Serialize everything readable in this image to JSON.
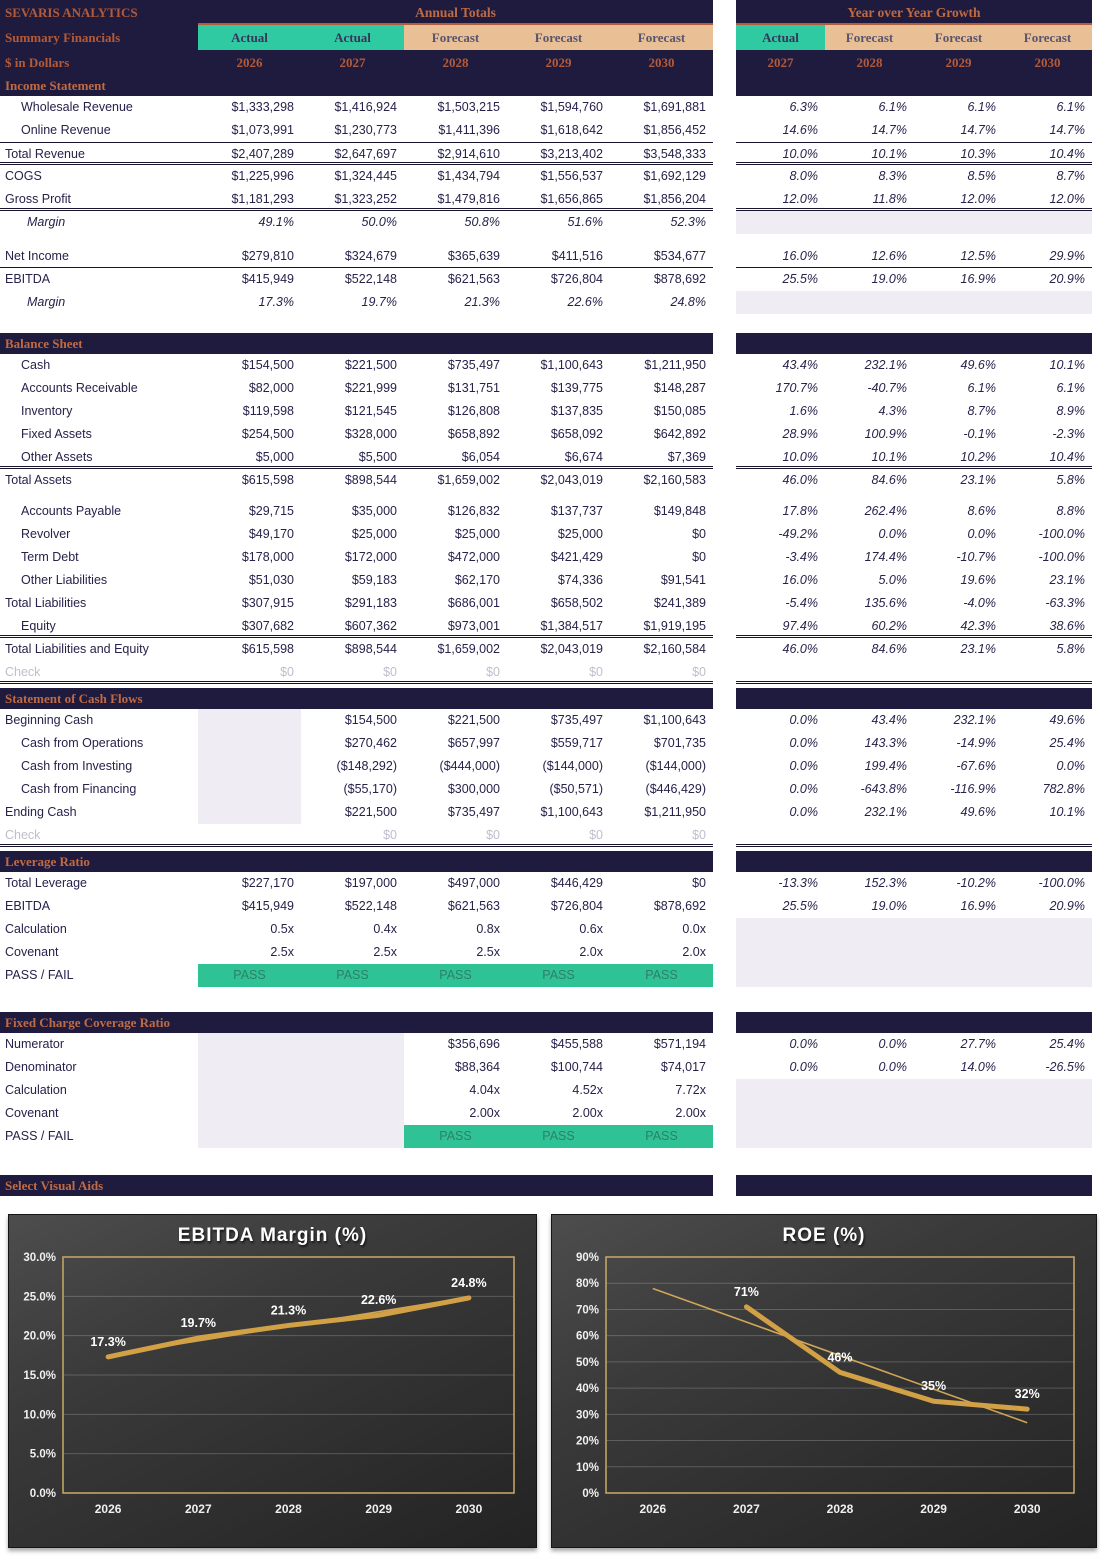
{
  "header": {
    "company": "SEVARIS ANALYTICS",
    "subtitle": "Summary Financials",
    "units": "$ in Dollars",
    "left_group": "Annual Totals",
    "right_group": "Year over Year Growth",
    "left_cols": [
      {
        "type": "Actual",
        "year": "2026"
      },
      {
        "type": "Actual",
        "year": "2027"
      },
      {
        "type": "Forecast",
        "year": "2028"
      },
      {
        "type": "Forecast",
        "year": "2029"
      },
      {
        "type": "Forecast",
        "year": "2030"
      }
    ],
    "right_cols": [
      {
        "type": "Actual",
        "year": "2027"
      },
      {
        "type": "Forecast",
        "year": "2028"
      },
      {
        "type": "Forecast",
        "year": "2029"
      },
      {
        "type": "Forecast",
        "year": "2030"
      }
    ]
  },
  "colors": {
    "navy": "#1f1b3e",
    "accent": "#c06a42",
    "teal_actual": "#2fc9a2",
    "tan_forecast": "#e9c096",
    "pass_fill": "#2fc294",
    "gray_fill": "#efedf3",
    "chart_line_gold": "#d2a045"
  },
  "sections": [
    {
      "title": "Income Statement",
      "gap": 0,
      "rows": [
        {
          "l": "Wholesale Revenue",
          "i": 1,
          "v": [
            "$1,333,298",
            "$1,416,924",
            "$1,503,215",
            "$1,594,760",
            "$1,691,881"
          ],
          "y": [
            "6.3%",
            "6.1%",
            "6.1%",
            "6.1%"
          ]
        },
        {
          "l": "Online Revenue",
          "i": 1,
          "v": [
            "$1,073,991",
            "$1,230,773",
            "$1,411,396",
            "$1,618,642",
            "$1,856,452"
          ],
          "y": [
            "14.6%",
            "14.7%",
            "14.7%",
            "14.7%"
          ]
        },
        {
          "l": "Total Revenue",
          "bt": "s",
          "bb": "d",
          "v": [
            "$2,407,289",
            "$2,647,697",
            "$2,914,610",
            "$3,213,402",
            "$3,548,333"
          ],
          "y": [
            "10.0%",
            "10.1%",
            "10.3%",
            "10.4%"
          ]
        },
        {
          "l": "COGS",
          "v": [
            "$1,225,996",
            "$1,324,445",
            "$1,434,794",
            "$1,556,537",
            "$1,692,129"
          ],
          "y": [
            "8.0%",
            "8.3%",
            "8.5%",
            "8.7%"
          ]
        },
        {
          "l": "Gross Profit",
          "bb": "d",
          "v": [
            "$1,181,293",
            "$1,323,252",
            "$1,479,816",
            "$1,656,865",
            "$1,856,204"
          ],
          "y": [
            "12.0%",
            "11.8%",
            "12.0%",
            "12.0%"
          ]
        },
        {
          "l": "Margin",
          "i": 2,
          "it": true,
          "v": [
            "49.1%",
            "50.0%",
            "50.8%",
            "51.6%",
            "52.3%"
          ],
          "y": [
            "",
            "",
            "",
            ""
          ],
          "gr": true
        },
        {
          "sp": 11
        },
        {
          "l": "Net Income",
          "bb": "s",
          "v": [
            "$279,810",
            "$324,679",
            "$365,639",
            "$411,516",
            "$534,677"
          ],
          "y": [
            "16.0%",
            "12.6%",
            "12.5%",
            "29.9%"
          ]
        },
        {
          "l": "EBITDA",
          "v": [
            "$415,949",
            "$522,148",
            "$621,563",
            "$726,804",
            "$878,692"
          ],
          "y": [
            "25.5%",
            "19.0%",
            "16.9%",
            "20.9%"
          ]
        },
        {
          "l": "Margin",
          "i": 2,
          "it": true,
          "v": [
            "17.3%",
            "19.7%",
            "21.3%",
            "22.6%",
            "24.8%"
          ],
          "y": [
            "",
            "",
            "",
            ""
          ],
          "gr": true
        }
      ]
    },
    {
      "title": "Balance Sheet",
      "gap": 19,
      "rows": [
        {
          "l": "Cash",
          "i": 1,
          "v": [
            "$154,500",
            "$221,500",
            "$735,497",
            "$1,100,643",
            "$1,211,950"
          ],
          "y": [
            "43.4%",
            "232.1%",
            "49.6%",
            "10.1%"
          ]
        },
        {
          "l": "Accounts Receivable",
          "i": 1,
          "v": [
            "$82,000",
            "$221,999",
            "$131,751",
            "$139,775",
            "$148,287"
          ],
          "y": [
            "170.7%",
            "-40.7%",
            "6.1%",
            "6.1%"
          ]
        },
        {
          "l": "Inventory",
          "i": 1,
          "v": [
            "$119,598",
            "$121,545",
            "$126,808",
            "$137,835",
            "$150,085"
          ],
          "y": [
            "1.6%",
            "4.3%",
            "8.7%",
            "8.9%"
          ]
        },
        {
          "l": "Fixed Assets",
          "i": 1,
          "v": [
            "$254,500",
            "$328,000",
            "$658,892",
            "$658,092",
            "$642,892"
          ],
          "y": [
            "28.9%",
            "100.9%",
            "-0.1%",
            "-2.3%"
          ]
        },
        {
          "l": "Other Assets",
          "i": 1,
          "bb": "d",
          "v": [
            "$5,000",
            "$5,500",
            "$6,054",
            "$6,674",
            "$7,369"
          ],
          "y": [
            "10.0%",
            "10.1%",
            "10.2%",
            "10.4%"
          ]
        },
        {
          "l": "Total Assets",
          "v": [
            "$615,598",
            "$898,544",
            "$1,659,002",
            "$2,043,019",
            "$2,160,583"
          ],
          "y": [
            "46.0%",
            "84.6%",
            "23.1%",
            "5.8%"
          ]
        },
        {
          "sp": 8
        },
        {
          "l": "Accounts Payable",
          "i": 1,
          "v": [
            "$29,715",
            "$35,000",
            "$126,832",
            "$137,737",
            "$149,848"
          ],
          "y": [
            "17.8%",
            "262.4%",
            "8.6%",
            "8.8%"
          ]
        },
        {
          "l": "Revolver",
          "i": 1,
          "v": [
            "$49,170",
            "$25,000",
            "$25,000",
            "$25,000",
            "$0"
          ],
          "y": [
            "-49.2%",
            "0.0%",
            "0.0%",
            "-100.0%"
          ]
        },
        {
          "l": "Term Debt",
          "i": 1,
          "v": [
            "$178,000",
            "$172,000",
            "$472,000",
            "$421,429",
            "$0"
          ],
          "y": [
            "-3.4%",
            "174.4%",
            "-10.7%",
            "-100.0%"
          ]
        },
        {
          "l": "Other Liabilities",
          "i": 1,
          "v": [
            "$51,030",
            "$59,183",
            "$62,170",
            "$74,336",
            "$91,541"
          ],
          "y": [
            "16.0%",
            "5.0%",
            "19.6%",
            "23.1%"
          ]
        },
        {
          "l": "Total Liabilities",
          "v": [
            "$307,915",
            "$291,183",
            "$686,001",
            "$658,502",
            "$241,389"
          ],
          "y": [
            "-5.4%",
            "135.6%",
            "-4.0%",
            "-63.3%"
          ]
        },
        {
          "l": "Equity",
          "i": 1,
          "bb": "d",
          "v": [
            "$307,682",
            "$607,362",
            "$973,001",
            "$1,384,517",
            "$1,919,195"
          ],
          "y": [
            "97.4%",
            "60.2%",
            "42.3%",
            "38.6%"
          ]
        },
        {
          "l": "Total Liabilities and Equity",
          "v": [
            "$615,598",
            "$898,544",
            "$1,659,002",
            "$2,043,019",
            "$2,160,584"
          ],
          "y": [
            "46.0%",
            "84.6%",
            "23.1%",
            "5.8%"
          ]
        },
        {
          "l": "Check",
          "ck": true,
          "bb": "d",
          "v": [
            "$0",
            "$0",
            "$0",
            "$0",
            "$0"
          ],
          "y": [
            "",
            "",
            "",
            ""
          ]
        }
      ]
    },
    {
      "title": "Statement of Cash Flows",
      "gap": 4,
      "rows": [
        {
          "l": "Beginning Cash",
          "gl": [
            0
          ],
          "v": [
            "",
            "$154,500",
            "$221,500",
            "$735,497",
            "$1,100,643"
          ],
          "y": [
            "0.0%",
            "43.4%",
            "232.1%",
            "49.6%"
          ]
        },
        {
          "l": "Cash from Operations",
          "i": 1,
          "gl": [
            0
          ],
          "v": [
            "",
            "$270,462",
            "$657,997",
            "$559,717",
            "$701,735"
          ],
          "y": [
            "0.0%",
            "143.3%",
            "-14.9%",
            "25.4%"
          ]
        },
        {
          "l": "Cash from Investing",
          "i": 1,
          "gl": [
            0
          ],
          "v": [
            "",
            "($148,292)",
            "($444,000)",
            "($144,000)",
            "($144,000)"
          ],
          "y": [
            "0.0%",
            "199.4%",
            "-67.6%",
            "0.0%"
          ]
        },
        {
          "l": "Cash from Financing",
          "i": 1,
          "gl": [
            0
          ],
          "v": [
            "",
            "($55,170)",
            "$300,000",
            "($50,571)",
            "($446,429)"
          ],
          "y": [
            "0.0%",
            "-643.8%",
            "-116.9%",
            "782.8%"
          ]
        },
        {
          "l": "Ending Cash",
          "gl": [
            0
          ],
          "v": [
            "",
            "$221,500",
            "$735,497",
            "$1,100,643",
            "$1,211,950"
          ],
          "y": [
            "0.0%",
            "232.1%",
            "49.6%",
            "10.1%"
          ]
        },
        {
          "l": "Check",
          "ck": true,
          "bb": "d",
          "v": [
            "",
            "$0",
            "$0",
            "$0",
            "$0"
          ],
          "y": [
            "",
            "",
            "",
            ""
          ]
        }
      ]
    },
    {
      "title": "Leverage Ratio",
      "gap": 4,
      "rows": [
        {
          "l": "Total Leverage",
          "v": [
            "$227,170",
            "$197,000",
            "$497,000",
            "$446,429",
            "$0"
          ],
          "y": [
            "-13.3%",
            "152.3%",
            "-10.2%",
            "-100.0%"
          ]
        },
        {
          "l": "EBITDA",
          "v": [
            "$415,949",
            "$522,148",
            "$621,563",
            "$726,804",
            "$878,692"
          ],
          "y": [
            "25.5%",
            "19.0%",
            "16.9%",
            "20.9%"
          ]
        },
        {
          "l": "Calculation",
          "v": [
            "0.5x",
            "0.4x",
            "0.8x",
            "0.6x",
            "0.0x"
          ],
          "y": [
            "",
            "",
            "",
            ""
          ],
          "gr": true
        },
        {
          "l": "Covenant",
          "v": [
            "2.5x",
            "2.5x",
            "2.5x",
            "2.0x",
            "2.0x"
          ],
          "y": [
            "",
            "",
            "",
            ""
          ],
          "gr": true
        },
        {
          "l": "PASS / FAIL",
          "pass": [
            0,
            1,
            2,
            3,
            4
          ],
          "v": [
            "PASS",
            "PASS",
            "PASS",
            "PASS",
            "PASS"
          ],
          "y": [
            "",
            "",
            "",
            ""
          ],
          "gr": true
        }
      ]
    },
    {
      "title": "Fixed Charge Coverage Ratio",
      "gap": 25,
      "rows": [
        {
          "l": "Numerator",
          "gl": [
            0,
            1
          ],
          "v": [
            "",
            "",
            "$356,696",
            "$455,588",
            "$571,194"
          ],
          "y": [
            "0.0%",
            "0.0%",
            "27.7%",
            "25.4%"
          ]
        },
        {
          "l": "Denominator",
          "gl": [
            0,
            1
          ],
          "v": [
            "",
            "",
            "$88,364",
            "$100,744",
            "$74,017"
          ],
          "y": [
            "0.0%",
            "0.0%",
            "14.0%",
            "-26.5%"
          ]
        },
        {
          "l": "Calculation",
          "gl": [
            0,
            1
          ],
          "v": [
            "",
            "",
            "4.04x",
            "4.52x",
            "7.72x"
          ],
          "y": [
            "",
            "",
            "",
            ""
          ],
          "gr": true
        },
        {
          "l": "Covenant",
          "gl": [
            0,
            1
          ],
          "v": [
            "",
            "",
            "2.00x",
            "2.00x",
            "2.00x"
          ],
          "y": [
            "",
            "",
            "",
            ""
          ],
          "gr": true
        },
        {
          "l": "PASS / FAIL",
          "gl": [
            0,
            1
          ],
          "pass": [
            2,
            3,
            4
          ],
          "v": [
            "",
            "",
            "PASS",
            "PASS",
            "PASS"
          ],
          "y": [
            "",
            "",
            "",
            ""
          ],
          "gr": true
        }
      ]
    },
    {
      "title": "Select Visual Aids",
      "gap": 27,
      "rows": []
    }
  ],
  "chart_data": [
    {
      "type": "line",
      "title": "EBITDA Margin  (%)",
      "x": [
        "2026",
        "2027",
        "2028",
        "2029",
        "2030"
      ],
      "series": [
        {
          "name": "EBITDA Margin",
          "values": [
            17.3,
            19.7,
            21.3,
            22.6,
            24.8
          ]
        }
      ],
      "data_labels": [
        "17.3%",
        "19.7%",
        "21.3%",
        "22.6%",
        "24.8%"
      ],
      "ylim": [
        0,
        30
      ],
      "yticks": [
        0,
        5,
        10,
        15,
        20,
        25,
        30
      ],
      "ytick_labels": [
        "0.0%",
        "5.0%",
        "10.0%",
        "15.0%",
        "20.0%",
        "25.0%",
        "30.0%"
      ],
      "trendline": {
        "start": 17.5,
        "end": 24.9
      },
      "grid": true,
      "legend": "none"
    },
    {
      "type": "line",
      "title": "ROE (%)",
      "x": [
        "2026",
        "2027",
        "2028",
        "2029",
        "2030"
      ],
      "series": [
        {
          "name": "ROE",
          "values": [
            null,
            71,
            46,
            35,
            32
          ]
        }
      ],
      "data_labels": [
        "",
        "71%",
        "46%",
        "35%",
        "32%"
      ],
      "ylim": [
        0,
        90
      ],
      "yticks": [
        0,
        10,
        20,
        30,
        40,
        50,
        60,
        70,
        80,
        90
      ],
      "ytick_labels": [
        "0%",
        "10%",
        "20%",
        "30%",
        "40%",
        "50%",
        "60%",
        "70%",
        "80%",
        "90%"
      ],
      "trendline": {
        "start": 78,
        "end": 26.8
      },
      "grid": true,
      "legend": "none"
    }
  ]
}
